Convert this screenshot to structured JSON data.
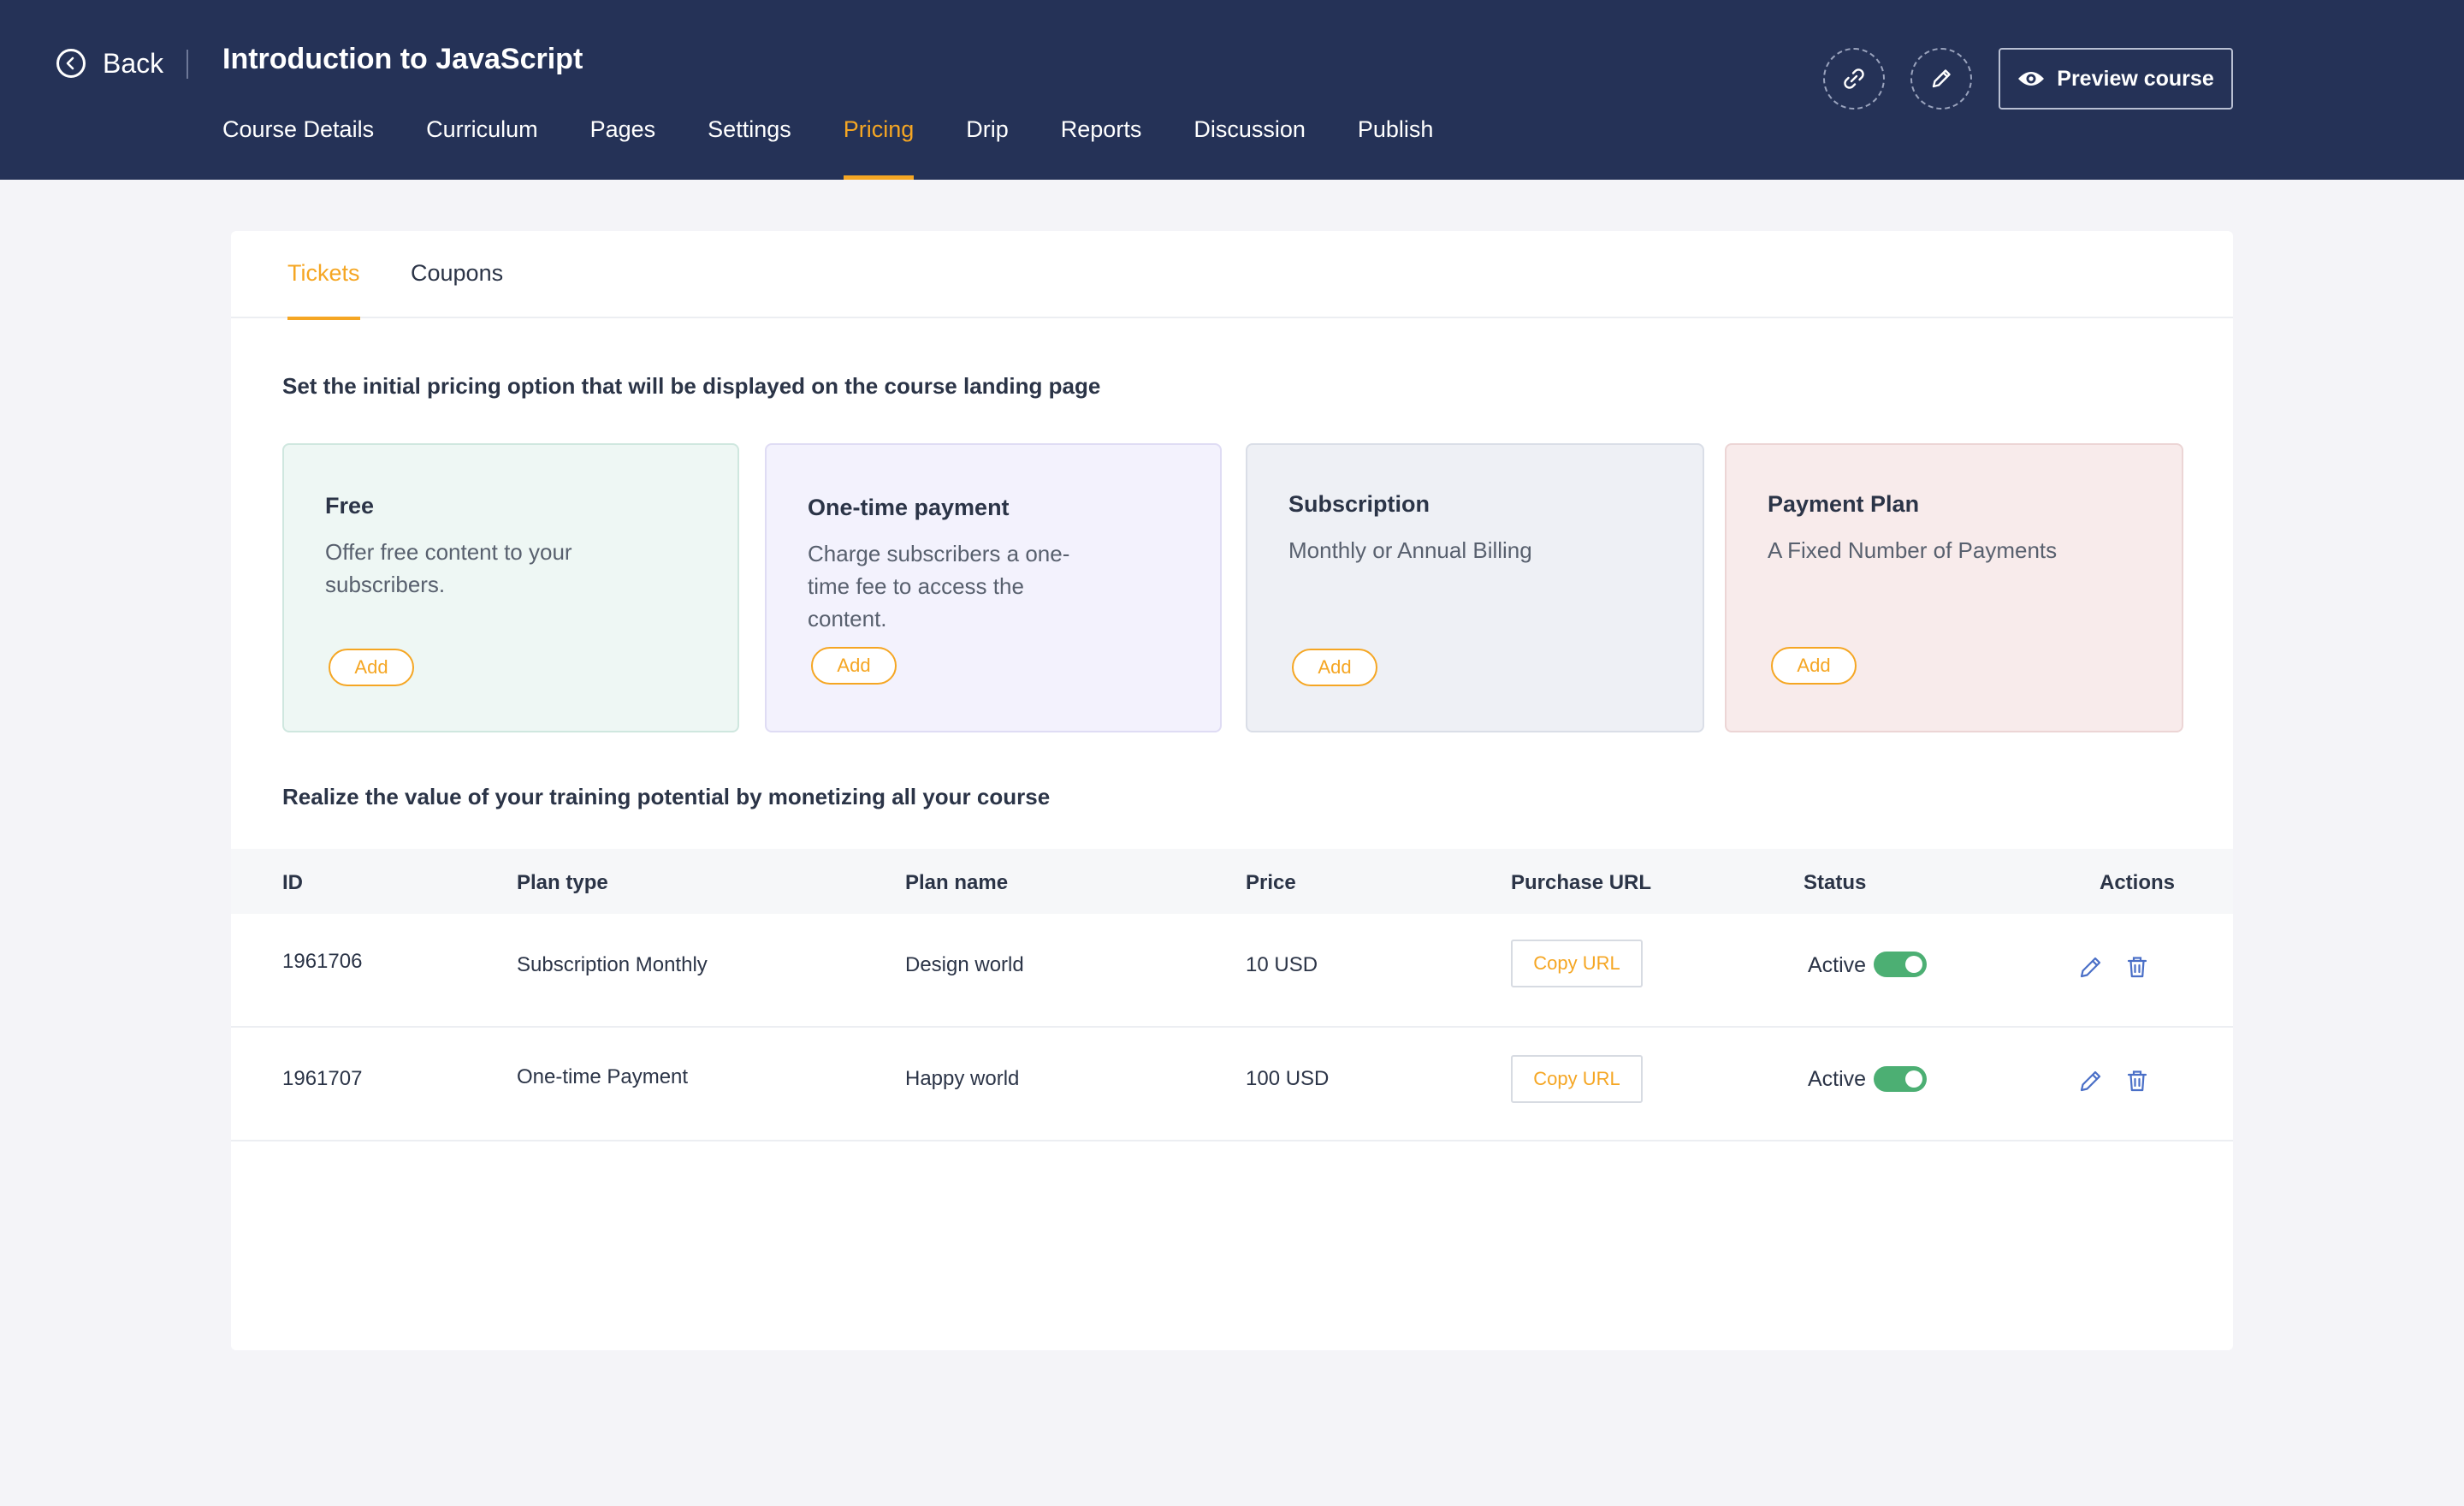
{
  "header": {
    "back_label": "Back",
    "course_title": "Introduction to JavaScript",
    "nav": [
      "Course Details",
      "Curriculum",
      "Pages",
      "Settings",
      "Pricing",
      "Drip",
      "Reports",
      "Discussion",
      "Publish"
    ],
    "active_nav": "Pricing",
    "preview_label": "Preview course"
  },
  "subtabs": [
    "Tickets",
    "Coupons"
  ],
  "pricing_heading": "Set the initial pricing option that will be displayed on the course landing page",
  "options": [
    {
      "title": "Free",
      "desc": "Offer free content to your subscribers.",
      "add": "Add",
      "bg": "#eef7f4",
      "border": "#cfe7df"
    },
    {
      "title": "One-time payment",
      "desc": "Charge subscribers a one-time fee to access the content.",
      "add": "Add",
      "bg": "#f3f2fd",
      "border": "#dfdcf4"
    },
    {
      "title": "Subscription",
      "desc": "Monthly or Annual Billing",
      "add": "Add",
      "bg": "#eef0f5",
      "border": "#dadee7"
    },
    {
      "title": "Payment Plan",
      "desc": "A Fixed Number of Payments",
      "add": "Add",
      "bg": "#f8ebeb",
      "border": "#ecd5d5"
    }
  ],
  "monetize_heading": "Realize the value of your training potential by monetizing all your course",
  "table": {
    "headers": [
      "ID",
      "Plan type",
      "Plan name",
      "Price",
      "Purchase URL",
      "Status",
      "Actions"
    ],
    "rows": [
      {
        "id": "1961706",
        "plan_type": "Subscription Monthly",
        "plan_name": "Design world",
        "price": "10 USD",
        "copy": "Copy URL",
        "status": "Active"
      },
      {
        "id": "1961707",
        "plan_type": "One-time Payment",
        "plan_name": "Happy world",
        "price": "100 USD",
        "copy": "Copy URL",
        "status": "Active"
      }
    ]
  },
  "colors": {
    "header_bg": "#253257",
    "accent": "#f5a623",
    "toggle_on": "#4caf73",
    "action_icon": "#4a6fc7"
  }
}
